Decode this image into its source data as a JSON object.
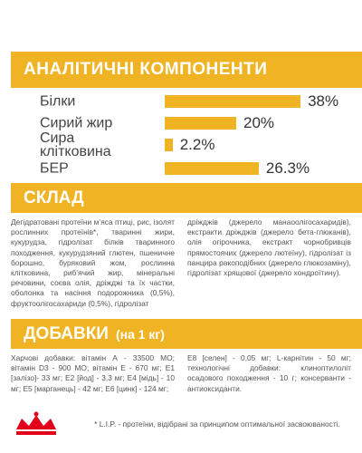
{
  "chart_data": {
    "type": "bar",
    "title": "АНАЛІТИЧНІ КОМПОНЕНТИ",
    "categories": [
      "Білки",
      "Сирий жир",
      "Сира клітковина",
      "БЕР"
    ],
    "values": [
      38,
      20,
      2.2,
      26.3
    ],
    "value_labels": [
      "38%",
      "20%",
      "2.2%",
      "26.3%"
    ],
    "color": "#f0b323"
  },
  "composition": {
    "title": "СКЛАД",
    "left": "Дегідратовані протеїни м’яса птиці, рис, ізолят рослинних протеїнів*, тваринні жири, кукурудза, гідролізат білків тваринного походження, кукурудзяний глютен, пшеничне борошно, буряковий жом, рослинна клітковина, риб’ячий жир, мінеральні речовини, соєва олія, дріжджі та їх частки, оболонка та насіння подорожника (0,5%), фруктоолігосахариди (0,5%), гідролізат",
    "right": "дріжджів (джерело манаоолігосахаридів), екстракти дріжджів (джерело бета-глюканів), олія огірочника, екстракт чорнобривців прямостоячих (джерело лютеїну), гідролізат із панцира ракоподібних (джерело глюкозаміну), гідролізат хрящової (джерело хондроїтину)."
  },
  "additives": {
    "title": "ДОБАВКИ",
    "subtitle": "(на 1 кг)",
    "left": "Харчові добавки: вітамін А - 33500 МО; вітамін D3 - 900 МО; вітамін Е - 670 мг; Е1 [залізо]- 33 мг; Е2 [йод] - 3,3 мг; Е4 [мідь] - 10 мг; Е5 [марганець] - 42 мг; Е6 [цинк] - 124 мг;",
    "right": "Е8 [селен] - 0,05 мг; L-карнітин - 50 мг; технологічні добавки: клиноптилоліт осадового походження - 10 г; консерванти - антиоксиданти."
  },
  "footnote": "* L.I.P. - протеїни, відібрані за принципом оптимальної засвоюваності."
}
